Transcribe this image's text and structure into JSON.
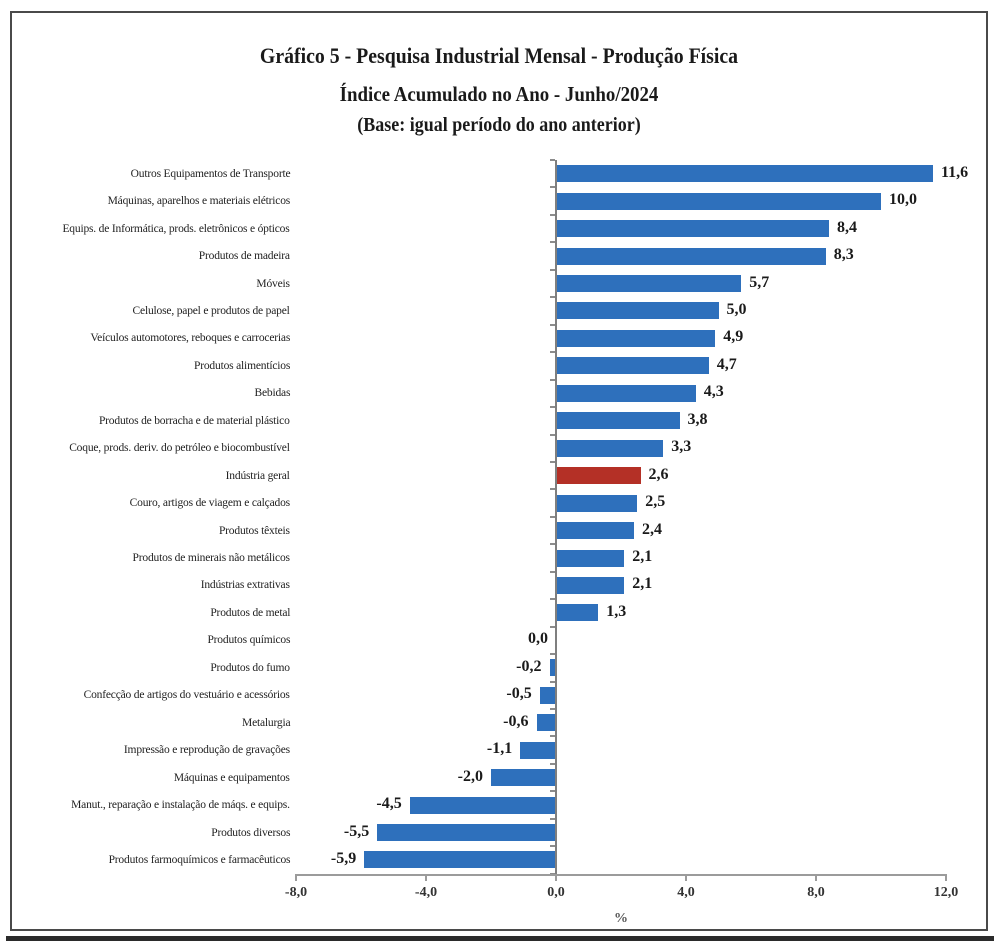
{
  "title": {
    "line1": "Gráfico 5 - Pesquisa Industrial Mensal - Produção Física",
    "line2": "Índice Acumulado no Ano - Junho/2024",
    "line3": "(Base: igual período do ano anterior)"
  },
  "chart_data": {
    "type": "bar",
    "orientation": "horizontal",
    "title": "Gráfico 5 - Pesquisa Industrial Mensal - Produção Física",
    "subtitle": "Índice Acumulado no Ano - Junho/2024",
    "base_note": "(Base: igual período do ano anterior)",
    "categories": [
      "Outros Equipamentos de Transporte",
      "Máquinas, aparelhos e materiais elétricos",
      "Equips. de Informática, prods. eletrônicos e ópticos",
      "Produtos de madeira",
      "Móveis",
      "Celulose, papel e produtos de papel",
      "Veículos automotores, reboques e carrocerias",
      "Produtos alimentícios",
      "Bebidas",
      "Produtos de borracha e de material plástico",
      "Coque, prods. deriv. do petróleo e biocombustível",
      "Indústria geral",
      "Couro, artigos de viagem e calçados",
      "Produtos têxteis",
      "Produtos de minerais não metálicos",
      "Indústrias extrativas",
      "Produtos de metal",
      "Produtos químicos",
      "Produtos do fumo",
      "Confecção de artigos do vestuário e acessórios",
      "Metalurgia",
      "Impressão e reprodução de gravações",
      "Máquinas e equipamentos",
      "Manut., reparação e instalação de máqs. e equips.",
      "Produtos diversos",
      "Produtos farmoquímicos e farmacêuticos"
    ],
    "values": [
      11.6,
      10.0,
      8.4,
      8.3,
      5.7,
      5.0,
      4.9,
      4.7,
      4.3,
      3.8,
      3.3,
      2.6,
      2.5,
      2.4,
      2.1,
      2.1,
      1.3,
      0.0,
      -0.2,
      -0.5,
      -0.6,
      -1.1,
      -2.0,
      -4.5,
      -5.5,
      -5.9
    ],
    "value_labels": [
      "11,6",
      "10,0",
      "8,4",
      "8,3",
      "5,7",
      "5,0",
      "4,9",
      "4,7",
      "4,3",
      "3,8",
      "3,3",
      "2,6",
      "2,5",
      "2,4",
      "2,1",
      "2,1",
      "1,3",
      "0,0",
      "-0,2",
      "-0,5",
      "-0,6",
      "-1,1",
      "-2,0",
      "-4,5",
      "-5,5",
      "-5,9"
    ],
    "highlight_category": "Indústria geral",
    "highlight_index": 11,
    "bar_color": "#2E70BC",
    "highlight_color": "#B43026",
    "xlabel": "%",
    "xlim": [
      -8.0,
      12.0
    ],
    "x_ticks": [
      -8.0,
      -4.0,
      0.0,
      4.0,
      8.0,
      12.0
    ],
    "x_tick_labels": [
      "-8,0",
      "-4,0",
      "0,0",
      "4,0",
      "8,0",
      "12,0"
    ],
    "grid": false,
    "legend": "none"
  }
}
